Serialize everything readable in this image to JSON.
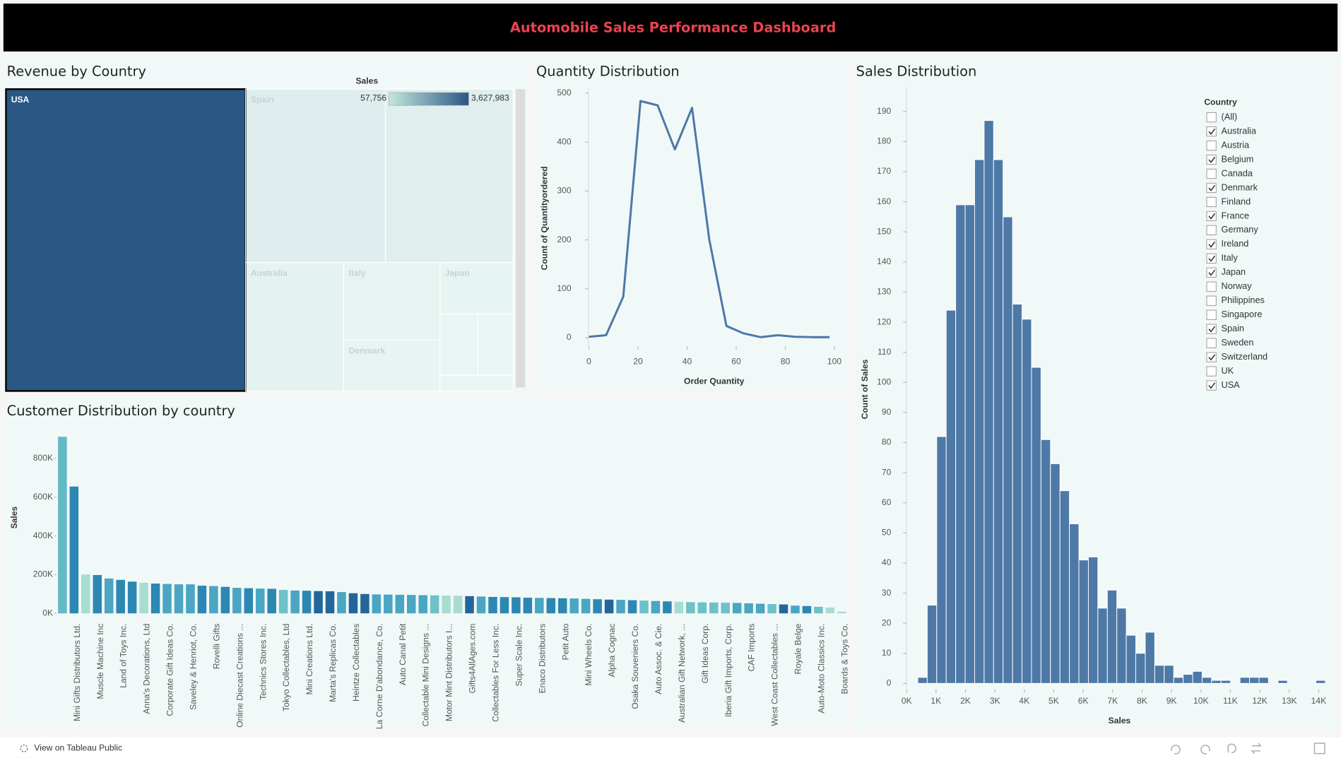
{
  "header": {
    "title": "Automobile Sales Performance Dashboard"
  },
  "footer": {
    "link": "View on Tableau Public"
  },
  "chart_data": [
    {
      "type": "treemap",
      "title": "Revenue by Country",
      "labels": [
        "USA",
        "Spain",
        null,
        "Australia",
        "Italy",
        "Denmark",
        "Japan",
        null,
        null,
        null
      ],
      "values": [
        3627983,
        1215686,
        1110916,
        630623,
        374674,
        245637,
        188167,
        117714,
        108412,
        57756
      ],
      "selected_index": 0,
      "color_title": "Sales",
      "color_range": [
        {
          "value": 57756,
          "label": "57,756"
        },
        {
          "value": 3627983,
          "label": "3,627,983"
        }
      ],
      "colors": [
        "#c3e7dd",
        "#2a5783"
      ]
    },
    {
      "type": "line",
      "title": "Quantity Distribution",
      "x_label": "Order Quantity",
      "y_label": "Count of Quantityordered",
      "x": [
        0,
        7,
        14,
        21,
        28,
        35,
        42,
        49,
        56,
        63,
        70,
        77,
        84,
        91,
        98
      ],
      "values": [
        2,
        5,
        84,
        484,
        475,
        385,
        470,
        201,
        24,
        9,
        1,
        5,
        2,
        1,
        1
      ],
      "color": "#4e79a7",
      "xlim": [
        -3,
        105
      ],
      "xticks": [
        0,
        20,
        40,
        60,
        80,
        100
      ],
      "ylim": [
        -18,
        510
      ],
      "yticks": [
        0,
        100,
        200,
        300,
        400,
        500
      ]
    },
    {
      "type": "bar",
      "title": "Customer Distribution by country",
      "y_label": "Sales",
      "categories": [
        null,
        "Mini Gifts Distributors Ltd.",
        null,
        "Muscle Machine Inc",
        null,
        "Land of Toys Inc.",
        null,
        "Anna's Decorations, Ltd",
        null,
        "Corporate Gift Ideas Co.",
        null,
        "Saveley & Henriot, Co.",
        null,
        "Rovelli Gifts",
        null,
        "Online Diecast Creations ...",
        null,
        "Technics Stores Inc.",
        null,
        "Tokyo Collectables, Ltd",
        null,
        "Mini Creations Ltd.",
        null,
        "Marta's Replicas Co.",
        null,
        "Heintze Collectables",
        null,
        "La Corne D'abondance, Co.",
        null,
        "Auto Canal Petit",
        null,
        "Collectable Mini Designs ...",
        null,
        "Motor Mint Distributors I...",
        null,
        "Gifts4AllAges.com",
        null,
        "Collectables For Less Inc.",
        null,
        "Super Scale Inc.",
        null,
        "Enaco Distributors",
        null,
        "Petit Auto",
        null,
        "Mini Wheels Co.",
        null,
        "Alpha Cognac",
        null,
        "Osaka Souveniers Co.",
        null,
        "Auto Assoc. & Cie.",
        null,
        "Australian Gift Network, ...",
        null,
        "Gift Ideas Corp.",
        null,
        "Iberia Gift Imports, Corp.",
        null,
        "CAF Imports",
        null,
        "West Coast Collectables ...",
        null,
        "Royale Belge",
        null,
        "Auto-Moto Classics Inc.",
        null,
        "Boards & Toys Co."
      ],
      "values": [
        912000,
        655000,
        201000,
        198000,
        180000,
        173000,
        164000,
        158000,
        154000,
        152000,
        150000,
        150000,
        143000,
        141000,
        137000,
        132000,
        130000,
        128000,
        127000,
        121000,
        118000,
        117000,
        115000,
        114000,
        110000,
        104000,
        100000,
        98000,
        97000,
        96000,
        95000,
        94000,
        93000,
        92000,
        91000,
        89000,
        87000,
        85000,
        84000,
        83000,
        81000,
        80000,
        79000,
        78000,
        77000,
        75000,
        73000,
        71000,
        70000,
        68000,
        66000,
        64000,
        62000,
        60000,
        58000,
        57000,
        56000,
        55000,
        54000,
        52000,
        50000,
        48000,
        46000,
        40000,
        38000,
        34000,
        30000,
        9000
      ],
      "colors": [
        "#63b9c6",
        "#2d87b3",
        "#a8dccf",
        "#2d87b3",
        "#4aa6c2",
        "#2d87b3",
        "#2d87b3",
        "#a8dccf",
        "#2d87b3",
        "#4aa6c2",
        "#4aa6c2",
        "#4aa6c2",
        "#2d87b3",
        "#4aa6c2",
        "#2d87b3",
        "#4aa6c2",
        "#2d87b3",
        "#4aa6c2",
        "#2d87b3",
        "#6ec1c8",
        "#4aa6c2",
        "#2d87b3",
        "#24669a",
        "#24669a",
        "#4aa6c2",
        "#24669a",
        "#24669a",
        "#4aa6c2",
        "#4aa6c2",
        "#4aa6c2",
        "#4aa6c2",
        "#4aa6c2",
        "#6ec1c8",
        "#a8dccf",
        "#a8dccf",
        "#24669a",
        "#4aa6c2",
        "#2d87b3",
        "#2d87b3",
        "#2d87b3",
        "#2d87b3",
        "#4aa6c2",
        "#2d87b3",
        "#2d87b3",
        "#4aa6c2",
        "#4aa6c2",
        "#2d87b3",
        "#24669a",
        "#4aa6c2",
        "#2d87b3",
        "#6ec1c8",
        "#4aa6c2",
        "#2d87b3",
        "#a8dccf",
        "#6ec1c8",
        "#6ec1c8",
        "#6ec1c8",
        "#6ec1c8",
        "#4aa6c2",
        "#4aa6c2",
        "#4aa6c2",
        "#6ec1c8",
        "#24669a",
        "#4aa6c2",
        "#2d87b3",
        "#6ec1c8",
        "#a8dccf",
        "#a8dccf"
      ],
      "ylim": [
        -35000,
        941000
      ],
      "yticks": [
        {
          "value": 0,
          "label": "0K"
        },
        {
          "value": 200000,
          "label": "200K"
        },
        {
          "value": 400000,
          "label": "400K"
        },
        {
          "value": 600000,
          "label": "600K"
        },
        {
          "value": 800000,
          "label": "800K"
        }
      ]
    },
    {
      "type": "histogram",
      "title": "Sales Distribution",
      "x_label": "Sales",
      "y_label": "Count of Sales",
      "bins": [
        380,
        702,
        1024,
        1346,
        1668,
        1990,
        2312,
        2634,
        2956,
        3278,
        3600,
        3922,
        4244,
        4566,
        4888,
        5210,
        5532,
        5854,
        6176,
        6498,
        6820,
        7142,
        7464,
        7786,
        8108,
        8430,
        8752,
        9074,
        9396,
        9718,
        10040,
        10362,
        10684,
        11006,
        11328,
        11650,
        11972,
        12294,
        12616,
        12938,
        13260,
        13582,
        13904,
        14226
      ],
      "values": [
        2,
        26,
        82,
        124,
        159,
        159,
        174,
        187,
        174,
        155,
        126,
        121,
        105,
        81,
        73,
        64,
        53,
        41,
        42,
        25,
        31,
        25,
        16,
        10,
        17,
        6,
        6,
        2,
        3,
        4,
        2,
        1,
        1,
        0,
        2,
        2,
        2,
        0,
        1,
        0,
        0,
        0,
        1
      ],
      "color": "#4e79a7",
      "xlim": [
        -350,
        14380
      ],
      "xticks": [
        {
          "value": 0,
          "label": "0K"
        },
        {
          "value": 1000,
          "label": "1K"
        },
        {
          "value": 2000,
          "label": "2K"
        },
        {
          "value": 3000,
          "label": "3K"
        },
        {
          "value": 4000,
          "label": "4K"
        },
        {
          "value": 5000,
          "label": "5K"
        },
        {
          "value": 6000,
          "label": "6K"
        },
        {
          "value": 7000,
          "label": "7K"
        },
        {
          "value": 8000,
          "label": "8K"
        },
        {
          "value": 9000,
          "label": "9K"
        },
        {
          "value": 10000,
          "label": "10K"
        },
        {
          "value": 11000,
          "label": "11K"
        },
        {
          "value": 12000,
          "label": "12K"
        },
        {
          "value": 13000,
          "label": "13K"
        },
        {
          "value": 14000,
          "label": "14K"
        }
      ],
      "ylim": [
        -2,
        198
      ],
      "yticks": [
        0,
        10,
        20,
        30,
        40,
        50,
        60,
        70,
        80,
        90,
        100,
        110,
        120,
        130,
        140,
        150,
        160,
        170,
        180,
        190
      ]
    }
  ],
  "filter": {
    "title": "Country",
    "items": [
      {
        "label": "(All)",
        "checked": false
      },
      {
        "label": "Australia",
        "checked": true
      },
      {
        "label": "Austria",
        "checked": false
      },
      {
        "label": "Belgium",
        "checked": true
      },
      {
        "label": "Canada",
        "checked": false
      },
      {
        "label": "Denmark",
        "checked": true
      },
      {
        "label": "Finland",
        "checked": false
      },
      {
        "label": "France",
        "checked": true
      },
      {
        "label": "Germany",
        "checked": false
      },
      {
        "label": "Ireland",
        "checked": true
      },
      {
        "label": "Italy",
        "checked": true
      },
      {
        "label": "Japan",
        "checked": true
      },
      {
        "label": "Norway",
        "checked": false
      },
      {
        "label": "Philippines",
        "checked": false
      },
      {
        "label": "Singapore",
        "checked": false
      },
      {
        "label": "Spain",
        "checked": true
      },
      {
        "label": "Sweden",
        "checked": false
      },
      {
        "label": "Switzerland",
        "checked": true
      },
      {
        "label": "UK",
        "checked": false
      },
      {
        "label": "USA",
        "checked": true
      }
    ]
  }
}
